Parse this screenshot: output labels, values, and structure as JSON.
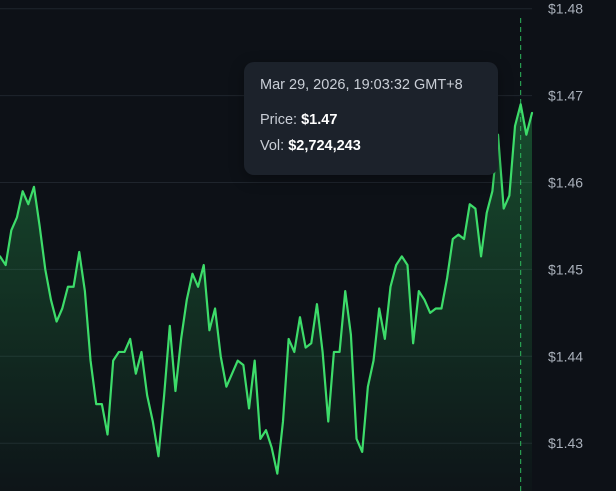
{
  "chart_data": {
    "type": "area",
    "y_ticks": [
      "$1.48",
      "$1.47",
      "$1.46",
      "$1.45",
      "$1.44",
      "$1.43"
    ],
    "y_tick_values": [
      1.48,
      1.47,
      1.46,
      1.45,
      1.44,
      1.43
    ],
    "ylim": [
      1.4245,
      1.481
    ],
    "grid": true,
    "series": [
      {
        "values": [
          1.4515,
          1.4505,
          1.4545,
          1.456,
          1.459,
          1.4575,
          1.4595,
          1.455,
          1.45,
          1.4465,
          1.444,
          1.4455,
          1.448,
          1.448,
          1.452,
          1.4475,
          1.4395,
          1.4345,
          1.4345,
          1.431,
          1.4395,
          1.4405,
          1.4405,
          1.442,
          1.438,
          1.4405,
          1.4355,
          1.4325,
          1.4285,
          1.4355,
          1.4435,
          1.436,
          1.442,
          1.4465,
          1.4495,
          1.448,
          1.4505,
          1.443,
          1.4455,
          1.44,
          1.4365,
          1.438,
          1.4395,
          1.439,
          1.434,
          1.4395,
          1.4305,
          1.4315,
          1.4295,
          1.4265,
          1.4325,
          1.442,
          1.4405,
          1.4445,
          1.441,
          1.4415,
          1.446,
          1.4405,
          1.4325,
          1.4405,
          1.4405,
          1.4475,
          1.4425,
          1.4305,
          1.429,
          1.4365,
          1.4395,
          1.4455,
          1.442,
          1.448,
          1.4505,
          1.4515,
          1.4505,
          1.4415,
          1.4475,
          1.4465,
          1.445,
          1.4455,
          1.4455,
          1.449,
          1.4535,
          1.454,
          1.4535,
          1.4575,
          1.457,
          1.4515,
          1.4565,
          1.459,
          1.4655,
          1.457,
          1.4585,
          1.4665,
          1.469,
          1.4655,
          1.468
        ],
        "color": "#3ddc6a"
      }
    ],
    "crosshair_index": 92
  },
  "tooltip": {
    "date": "Mar 29, 2026, 19:03:32 GMT+8",
    "price_label": "Price:",
    "price_value": "$1.47",
    "vol_label": "Vol:",
    "vol_value": "$2,724,243"
  },
  "colors": {
    "background": "#0d1117",
    "line": "#3ddc6a",
    "crosshair": "#2eb85c",
    "grid": "#1f252d",
    "tooltip_bg": "#1c222b",
    "tick_text": "#a9b0ba"
  }
}
